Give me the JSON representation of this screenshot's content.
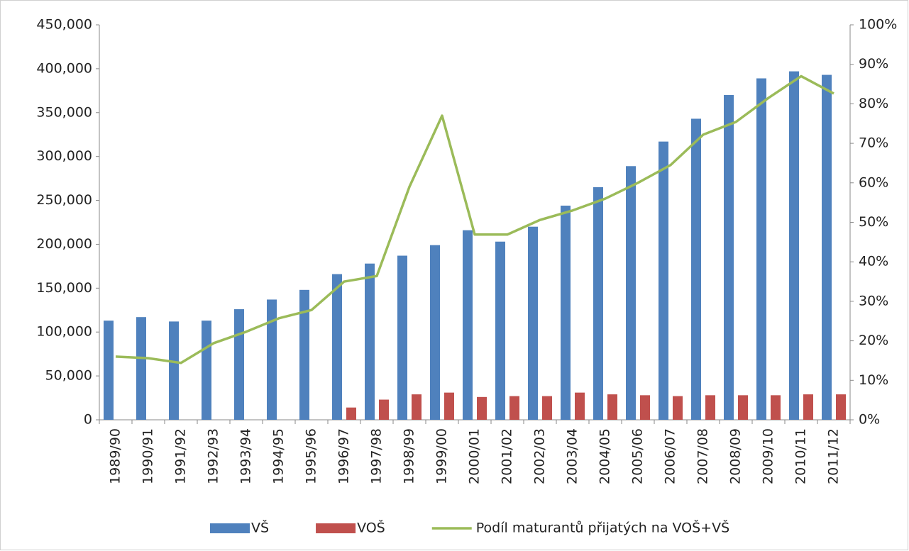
{
  "chart_data": {
    "type": "bar",
    "categories": [
      "1989/90",
      "1990/91",
      "1991/92",
      "1992/93",
      "1993/94",
      "1994/95",
      "1995/96",
      "1996/97",
      "1997/98",
      "1998/99",
      "1999/00",
      "2000/01",
      "2001/02",
      "2002/03",
      "2003/04",
      "2004/05",
      "2005/06",
      "2006/07",
      "2007/08",
      "2008/09",
      "2009/10",
      "2010/11",
      "2011/12"
    ],
    "series": [
      {
        "name": "VŠ",
        "color": "#4f81bd",
        "values": [
          113000,
          117000,
          112000,
          113000,
          126000,
          137000,
          148000,
          166000,
          178000,
          187000,
          199000,
          216000,
          203000,
          220000,
          244000,
          265000,
          289000,
          317000,
          343000,
          370000,
          389000,
          397000,
          393000
        ]
      },
      {
        "name": "VOŠ",
        "color": "#c0504d",
        "values": [
          null,
          null,
          null,
          null,
          null,
          null,
          null,
          14000,
          23000,
          29000,
          31000,
          26000,
          27000,
          27000,
          31000,
          29000,
          28000,
          27000,
          28000,
          28000,
          28000,
          29000,
          29000
        ]
      },
      {
        "name": "Podíl maturantů přijatých na VOŠ+VŠ",
        "color": "#9bbb59",
        "type": "line",
        "axis": "y2",
        "values": [
          16,
          15.6,
          14.4,
          19.4,
          22.3,
          25.7,
          27.8,
          35,
          36.4,
          59,
          77,
          46.9,
          46.9,
          50.6,
          53,
          56,
          60,
          64.5,
          72.2,
          75.4,
          81.5,
          87,
          82.6
        ]
      }
    ],
    "ylim": [
      0,
      450000
    ],
    "yticks": [
      0,
      {
        "value": 50000,
        "label": "50,000"
      },
      {
        "value": 100000,
        "label": "100,000"
      },
      {
        "value": 150000,
        "label": "150,000"
      },
      {
        "value": 200000,
        "label": "200,000"
      },
      {
        "value": 250000,
        "label": "250,000"
      },
      {
        "value": 300000,
        "label": "300,000"
      },
      {
        "value": 350000,
        "label": "350,000"
      },
      {
        "value": 400000,
        "label": "400,000"
      },
      {
        "value": 450000,
        "label": "450,000"
      }
    ],
    "y2lim": [
      0,
      100
    ],
    "y2ticks": [
      {
        "value": 0,
        "label": "0%"
      },
      {
        "value": 10,
        "label": "10%"
      },
      {
        "value": 20,
        "label": "20%"
      },
      {
        "value": 30,
        "label": "30%"
      },
      {
        "value": 40,
        "label": "40%"
      },
      {
        "value": 50,
        "label": "50%"
      },
      {
        "value": 60,
        "label": "60%"
      },
      {
        "value": 70,
        "label": "70%"
      },
      {
        "value": 80,
        "label": "80%"
      },
      {
        "value": 90,
        "label": "90%"
      },
      {
        "value": 100,
        "label": "100%"
      }
    ],
    "legend": "bottom"
  }
}
